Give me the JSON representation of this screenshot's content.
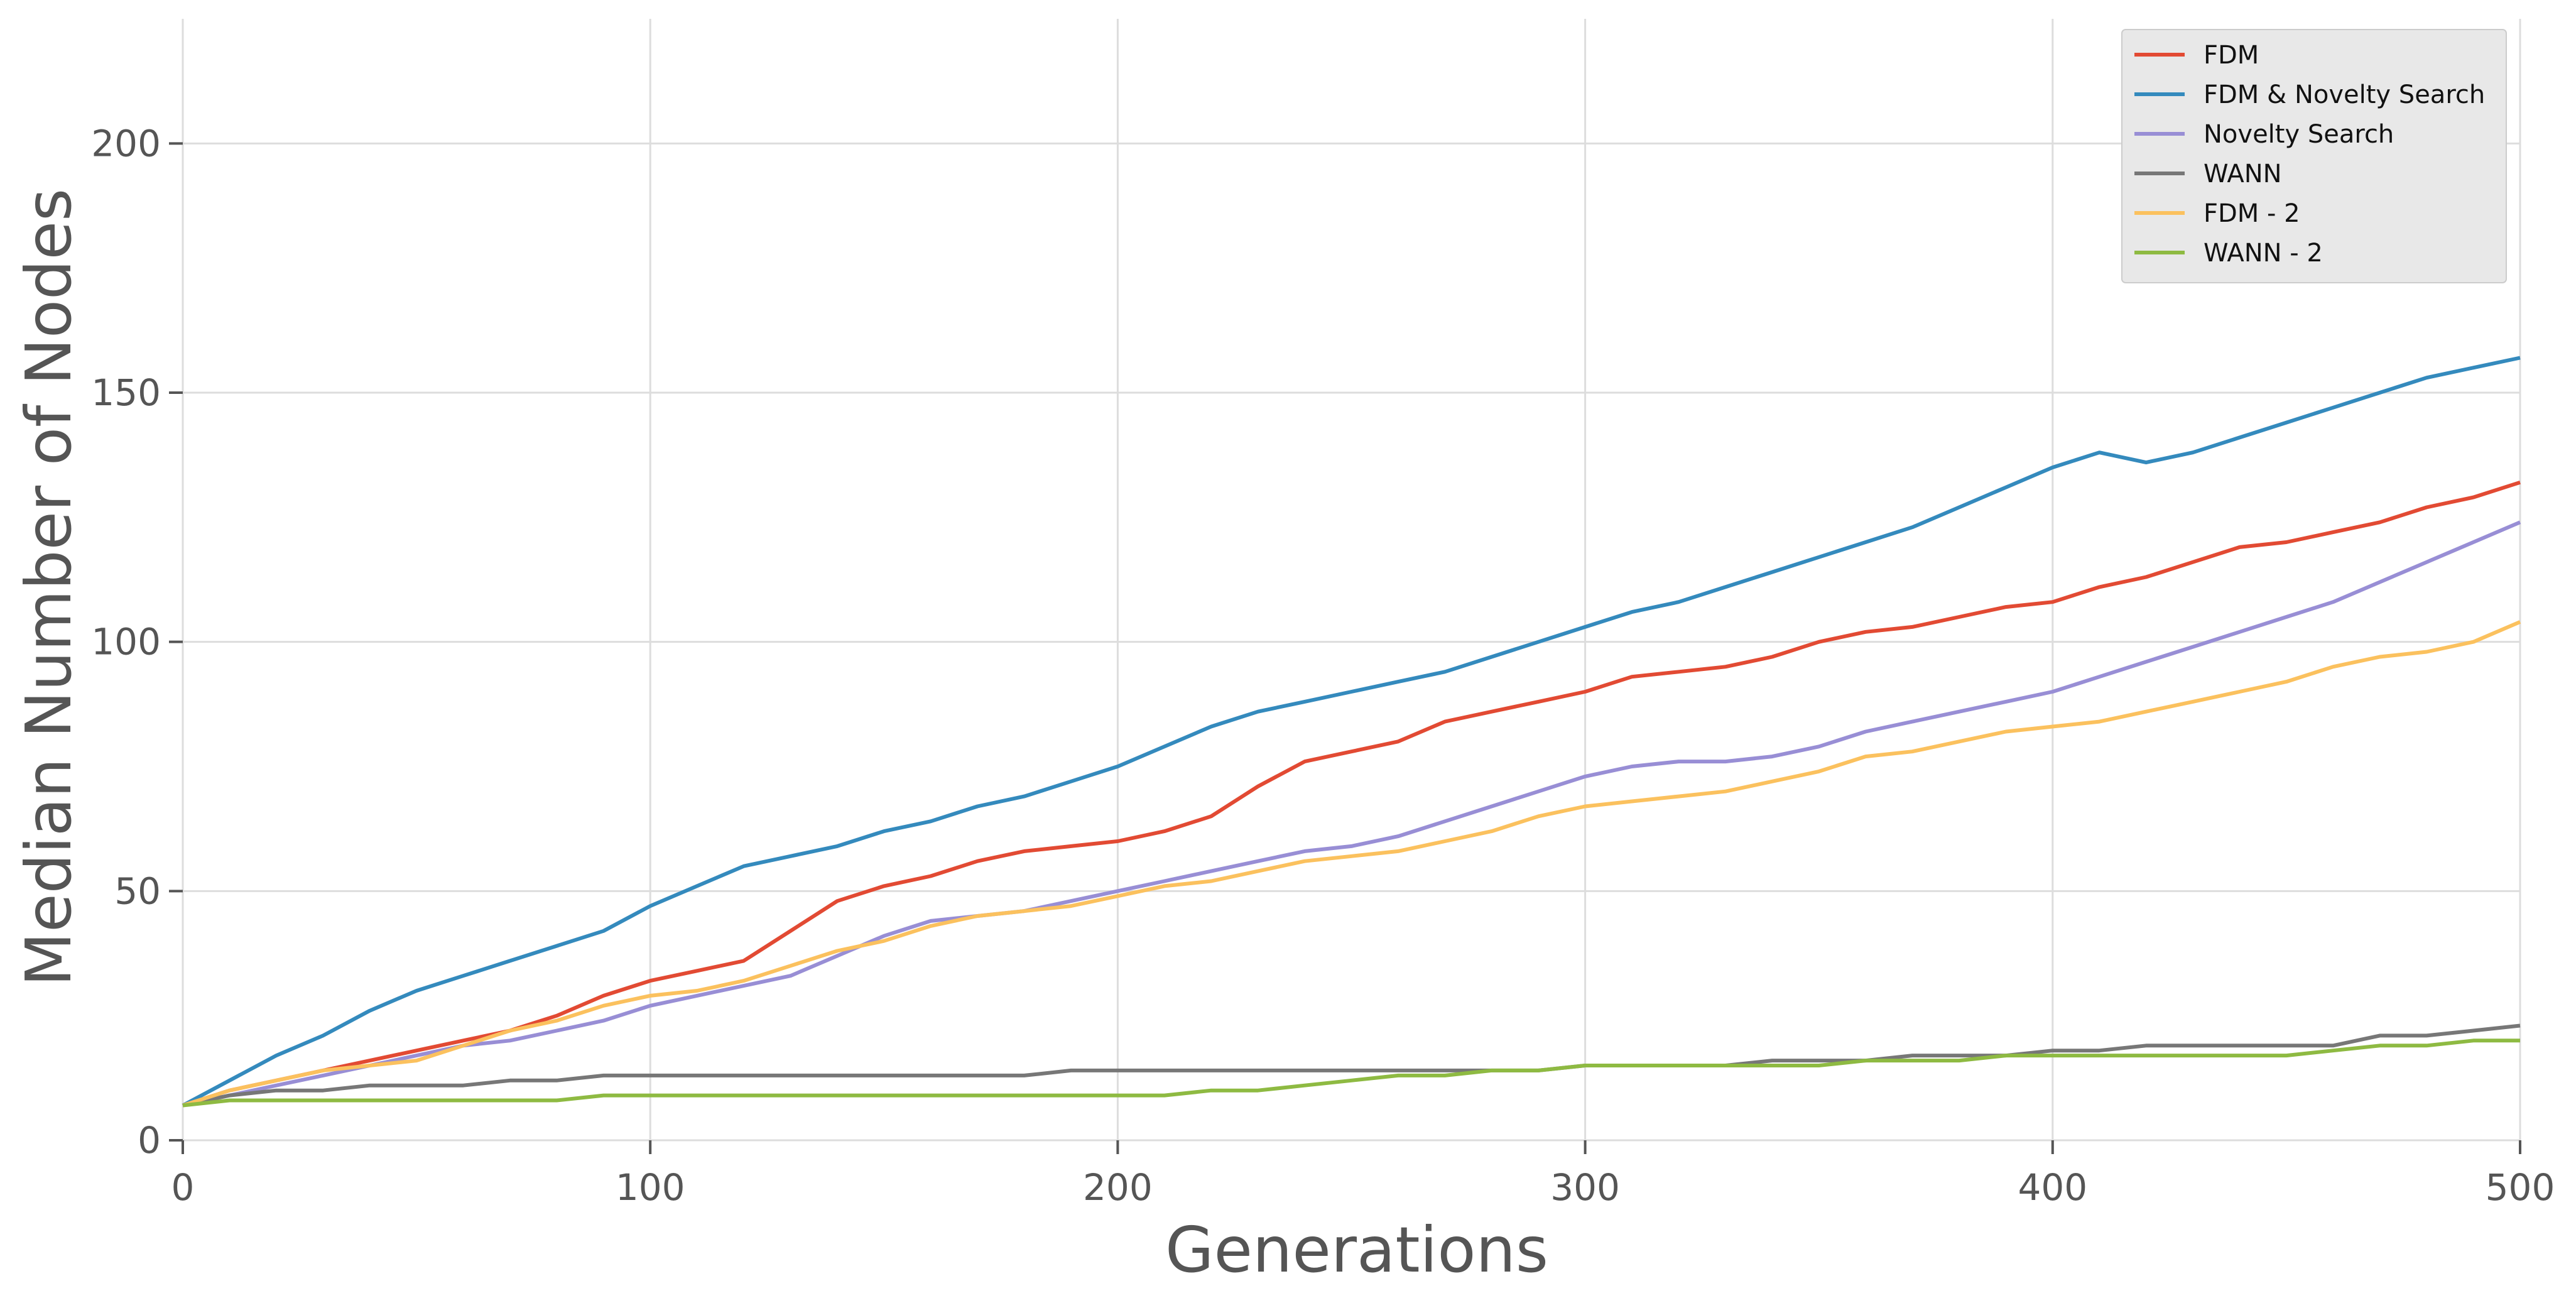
{
  "chart_data": {
    "type": "line",
    "xlabel": "Generations",
    "ylabel": "Median Number of Nodes",
    "xlim": [
      0,
      500
    ],
    "ylim": [
      0,
      225
    ],
    "xticks": [
      0,
      100,
      200,
      300,
      400,
      500
    ],
    "yticks": [
      0,
      50,
      100,
      150,
      200
    ],
    "grid": true,
    "legend_position": "top-right",
    "x": [
      0,
      10,
      20,
      30,
      40,
      50,
      60,
      70,
      80,
      90,
      100,
      110,
      120,
      130,
      140,
      150,
      160,
      170,
      180,
      190,
      200,
      210,
      220,
      230,
      240,
      250,
      260,
      270,
      280,
      290,
      300,
      310,
      320,
      330,
      340,
      350,
      360,
      370,
      380,
      390,
      400,
      410,
      420,
      430,
      440,
      450,
      460,
      470,
      480,
      490,
      500
    ],
    "series": [
      {
        "name": "FDM",
        "color": "#E24A33",
        "values": [
          7,
          10,
          12,
          14,
          16,
          18,
          20,
          22,
          25,
          29,
          32,
          34,
          36,
          42,
          48,
          51,
          53,
          56,
          58,
          59,
          60,
          62,
          65,
          71,
          76,
          78,
          80,
          84,
          86,
          88,
          90,
          93,
          94,
          95,
          97,
          100,
          102,
          103,
          105,
          107,
          108,
          111,
          113,
          116,
          119,
          120,
          122,
          124,
          127,
          129,
          132
        ]
      },
      {
        "name": "FDM & Novelty Search",
        "color": "#348ABD",
        "values": [
          7,
          12,
          17,
          21,
          26,
          30,
          33,
          36,
          39,
          42,
          47,
          51,
          55,
          57,
          59,
          62,
          64,
          67,
          69,
          72,
          75,
          79,
          83,
          86,
          88,
          90,
          92,
          94,
          97,
          100,
          103,
          106,
          108,
          111,
          114,
          117,
          120,
          123,
          127,
          131,
          135,
          138,
          136,
          138,
          141,
          144,
          147,
          150,
          153,
          155,
          157
        ]
      },
      {
        "name": "Novelty Search",
        "color": "#988ED5",
        "values": [
          7,
          9,
          11,
          13,
          15,
          17,
          19,
          20,
          22,
          24,
          27,
          29,
          31,
          33,
          37,
          41,
          44,
          45,
          46,
          48,
          50,
          52,
          54,
          56,
          58,
          59,
          61,
          64,
          67,
          70,
          73,
          75,
          76,
          76,
          77,
          79,
          82,
          84,
          86,
          88,
          90,
          93,
          96,
          99,
          102,
          105,
          108,
          112,
          116,
          120,
          124
        ]
      },
      {
        "name": "WANN",
        "color": "#777777",
        "values": [
          7,
          9,
          10,
          10,
          11,
          11,
          11,
          12,
          12,
          13,
          13,
          13,
          13,
          13,
          13,
          13,
          13,
          13,
          13,
          14,
          14,
          14,
          14,
          14,
          14,
          14,
          14,
          14,
          14,
          14,
          15,
          15,
          15,
          15,
          16,
          16,
          16,
          17,
          17,
          17,
          18,
          18,
          19,
          19,
          19,
          19,
          19,
          21,
          21,
          22,
          23
        ]
      },
      {
        "name": "FDM - 2",
        "color": "#FBC15E",
        "values": [
          7,
          10,
          12,
          14,
          15,
          16,
          19,
          22,
          24,
          27,
          29,
          30,
          32,
          35,
          38,
          40,
          43,
          45,
          46,
          47,
          49,
          51,
          52,
          54,
          56,
          57,
          58,
          60,
          62,
          65,
          67,
          68,
          69,
          70,
          72,
          74,
          77,
          78,
          80,
          82,
          83,
          84,
          86,
          88,
          90,
          92,
          95,
          97,
          98,
          100,
          104
        ]
      },
      {
        "name": "WANN - 2",
        "color": "#8EBA42",
        "values": [
          7,
          8,
          8,
          8,
          8,
          8,
          8,
          8,
          8,
          9,
          9,
          9,
          9,
          9,
          9,
          9,
          9,
          9,
          9,
          9,
          9,
          9,
          10,
          10,
          11,
          12,
          13,
          13,
          14,
          14,
          15,
          15,
          15,
          15,
          15,
          15,
          16,
          16,
          16,
          17,
          17,
          17,
          17,
          17,
          17,
          17,
          18,
          19,
          19,
          20,
          20
        ]
      }
    ]
  }
}
